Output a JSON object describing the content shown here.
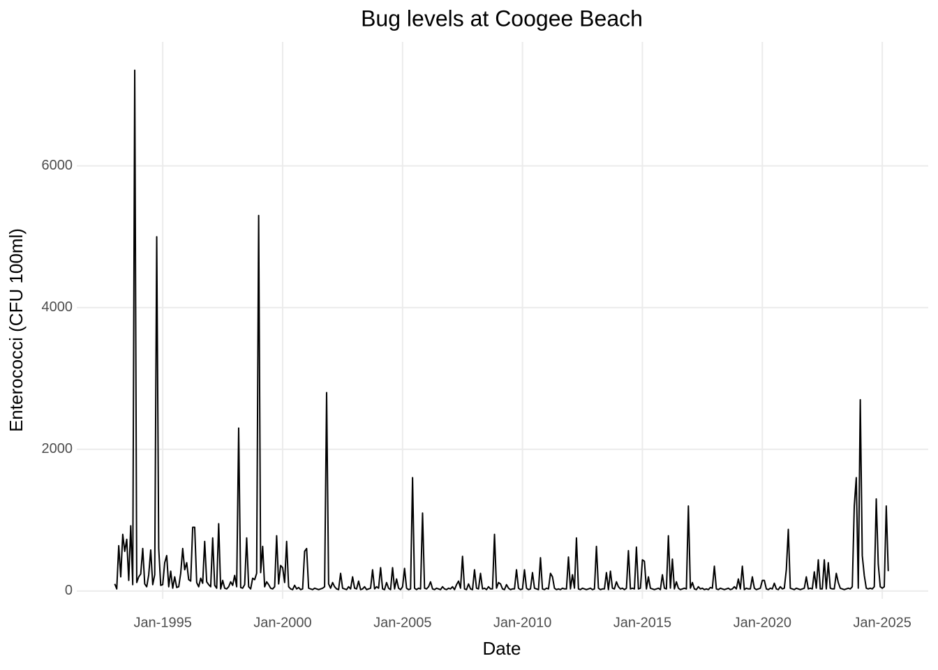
{
  "chart_data": {
    "type": "line",
    "title": "Bug levels at Coogee Beach",
    "x_label": "Date",
    "y_label": "Enterococci (CFU 100ml)",
    "xlim": [
      "1991-06",
      "2026-12"
    ],
    "xticks": [
      {
        "value": "1995-01",
        "label": "Jan-1995"
      },
      {
        "value": "2000-01",
        "label": "Jan-2000"
      },
      {
        "value": "2005-01",
        "label": "Jan-2005"
      },
      {
        "value": "2010-01",
        "label": "Jan-2010"
      },
      {
        "value": "2015-01",
        "label": "Jan-2015"
      },
      {
        "value": "2020-01",
        "label": "Jan-2020"
      },
      {
        "value": "2025-01",
        "label": "Jan-2025"
      }
    ],
    "ylim": [
      -110,
      7750
    ],
    "yticks": [
      0,
      2000,
      4000,
      6000
    ],
    "grid": true,
    "x": [
      "1993-01",
      "1993-02",
      "1993-03",
      "1993-04",
      "1993-05",
      "1993-06",
      "1993-07",
      "1993-08",
      "1993-09",
      "1993-10",
      "1993-11",
      "1993-12",
      "1994-01",
      "1994-02",
      "1994-03",
      "1994-04",
      "1994-05",
      "1994-06",
      "1994-07",
      "1994-08",
      "1994-09",
      "1994-10",
      "1994-11",
      "1994-12",
      "1995-01",
      "1995-02",
      "1995-03",
      "1995-04",
      "1995-05",
      "1995-06",
      "1995-07",
      "1995-08",
      "1995-09",
      "1995-10",
      "1995-11",
      "1995-12",
      "1996-01",
      "1996-02",
      "1996-03",
      "1996-04",
      "1996-05",
      "1996-06",
      "1996-07",
      "1996-08",
      "1996-09",
      "1996-10",
      "1996-11",
      "1996-12",
      "1997-01",
      "1997-02",
      "1997-03",
      "1997-04",
      "1997-05",
      "1997-06",
      "1997-07",
      "1997-08",
      "1997-09",
      "1997-10",
      "1997-11",
      "1997-12",
      "1998-01",
      "1998-02",
      "1998-03",
      "1998-04",
      "1998-05",
      "1998-06",
      "1998-07",
      "1998-08",
      "1998-09",
      "1998-10",
      "1998-11",
      "1998-12",
      "1999-01",
      "1999-02",
      "1999-03",
      "1999-04",
      "1999-05",
      "1999-06",
      "1999-07",
      "1999-08",
      "1999-09",
      "1999-10",
      "1999-11",
      "1999-12",
      "2000-01",
      "2000-02",
      "2000-03",
      "2000-04",
      "2000-05",
      "2000-06",
      "2000-07",
      "2000-08",
      "2000-09",
      "2000-10",
      "2000-11",
      "2000-12",
      "2001-01",
      "2001-02",
      "2001-03",
      "2001-04",
      "2001-05",
      "2001-06",
      "2001-07",
      "2001-08",
      "2001-09",
      "2001-10",
      "2001-11",
      "2001-12",
      "2002-01",
      "2002-02",
      "2002-03",
      "2002-04",
      "2002-05",
      "2002-06",
      "2002-07",
      "2002-08",
      "2002-09",
      "2002-10",
      "2002-11",
      "2002-12",
      "2003-01",
      "2003-02",
      "2003-03",
      "2003-04",
      "2003-05",
      "2003-06",
      "2003-07",
      "2003-08",
      "2003-09",
      "2003-10",
      "2003-11",
      "2003-12",
      "2004-01",
      "2004-02",
      "2004-03",
      "2004-04",
      "2004-05",
      "2004-06",
      "2004-07",
      "2004-08",
      "2004-09",
      "2004-10",
      "2004-11",
      "2004-12",
      "2005-01",
      "2005-02",
      "2005-03",
      "2005-04",
      "2005-05",
      "2005-06",
      "2005-07",
      "2005-08",
      "2005-09",
      "2005-10",
      "2005-11",
      "2005-12",
      "2006-01",
      "2006-02",
      "2006-03",
      "2006-04",
      "2006-05",
      "2006-06",
      "2006-07",
      "2006-08",
      "2006-09",
      "2006-10",
      "2006-11",
      "2006-12",
      "2007-01",
      "2007-02",
      "2007-03",
      "2007-04",
      "2007-05",
      "2007-06",
      "2007-07",
      "2007-08",
      "2007-09",
      "2007-10",
      "2007-11",
      "2007-12",
      "2008-01",
      "2008-02",
      "2008-03",
      "2008-04",
      "2008-05",
      "2008-06",
      "2008-07",
      "2008-08",
      "2008-09",
      "2008-10",
      "2008-11",
      "2008-12",
      "2009-01",
      "2009-02",
      "2009-03",
      "2009-04",
      "2009-05",
      "2009-06",
      "2009-07",
      "2009-08",
      "2009-09",
      "2009-10",
      "2009-11",
      "2009-12",
      "2010-01",
      "2010-02",
      "2010-03",
      "2010-04",
      "2010-05",
      "2010-06",
      "2010-07",
      "2010-08",
      "2010-09",
      "2010-10",
      "2010-11",
      "2010-12",
      "2011-01",
      "2011-02",
      "2011-03",
      "2011-04",
      "2011-05",
      "2011-06",
      "2011-07",
      "2011-08",
      "2011-09",
      "2011-10",
      "2011-11",
      "2011-12",
      "2012-01",
      "2012-02",
      "2012-03",
      "2012-04",
      "2012-05",
      "2012-06",
      "2012-07",
      "2012-08",
      "2012-09",
      "2012-10",
      "2012-11",
      "2012-12",
      "2013-01",
      "2013-02",
      "2013-03",
      "2013-04",
      "2013-05",
      "2013-06",
      "2013-07",
      "2013-08",
      "2013-09",
      "2013-10",
      "2013-11",
      "2013-12",
      "2014-01",
      "2014-02",
      "2014-03",
      "2014-04",
      "2014-05",
      "2014-06",
      "2014-07",
      "2014-08",
      "2014-09",
      "2014-10",
      "2014-11",
      "2014-12",
      "2015-01",
      "2015-02",
      "2015-03",
      "2015-04",
      "2015-05",
      "2015-06",
      "2015-07",
      "2015-08",
      "2015-09",
      "2015-10",
      "2015-11",
      "2015-12",
      "2016-01",
      "2016-02",
      "2016-03",
      "2016-04",
      "2016-05",
      "2016-06",
      "2016-07",
      "2016-08",
      "2016-09",
      "2016-10",
      "2016-11",
      "2016-12",
      "2017-01",
      "2017-02",
      "2017-03",
      "2017-04",
      "2017-05",
      "2017-06",
      "2017-07",
      "2017-08",
      "2017-09",
      "2017-10",
      "2017-11",
      "2017-12",
      "2018-01",
      "2018-02",
      "2018-03",
      "2018-04",
      "2018-05",
      "2018-06",
      "2018-07",
      "2018-08",
      "2018-09",
      "2018-10",
      "2018-11",
      "2018-12",
      "2019-01",
      "2019-02",
      "2019-03",
      "2019-04",
      "2019-05",
      "2019-06",
      "2019-07",
      "2019-08",
      "2019-09",
      "2019-10",
      "2019-11",
      "2019-12",
      "2020-01",
      "2020-02",
      "2020-03",
      "2020-04",
      "2020-05",
      "2020-06",
      "2020-07",
      "2020-08",
      "2020-09",
      "2020-10",
      "2020-11",
      "2020-12",
      "2021-01",
      "2021-02",
      "2021-03",
      "2021-04",
      "2021-05",
      "2021-06",
      "2021-07",
      "2021-08",
      "2021-09",
      "2021-10",
      "2021-11",
      "2021-12",
      "2022-01",
      "2022-02",
      "2022-03",
      "2022-04",
      "2022-05",
      "2022-06",
      "2022-07",
      "2022-08",
      "2022-09",
      "2022-10",
      "2022-11",
      "2022-12",
      "2023-01",
      "2023-02",
      "2023-03",
      "2023-04",
      "2023-05",
      "2023-06",
      "2023-07",
      "2023-08",
      "2023-09",
      "2023-10",
      "2023-11",
      "2023-12",
      "2024-01",
      "2024-02",
      "2024-03",
      "2024-04",
      "2024-05",
      "2024-06",
      "2024-07",
      "2024-08",
      "2024-09",
      "2024-10",
      "2024-11",
      "2024-12",
      "2025-01",
      "2025-02",
      "2025-03",
      "2025-04"
    ],
    "series": [
      {
        "color": "#000000",
        "values": [
          100,
          30,
          640,
          200,
          800,
          560,
          730,
          150,
          920,
          90,
          7350,
          120,
          200,
          240,
          600,
          100,
          60,
          230,
          580,
          90,
          230,
          5000,
          600,
          80,
          90,
          400,
          500,
          60,
          280,
          40,
          200,
          50,
          60,
          250,
          600,
          300,
          400,
          160,
          140,
          900,
          900,
          120,
          60,
          180,
          110,
          700,
          130,
          90,
          60,
          750,
          80,
          40,
          950,
          30,
          150,
          40,
          30,
          60,
          130,
          80,
          220,
          60,
          2300,
          50,
          40,
          90,
          750,
          60,
          30,
          180,
          160,
          250,
          5300,
          260,
          630,
          60,
          130,
          90,
          40,
          30,
          60,
          780,
          100,
          360,
          330,
          120,
          700,
          60,
          30,
          20,
          80,
          30,
          50,
          20,
          30,
          560,
          600,
          40,
          30,
          20,
          40,
          30,
          20,
          30,
          40,
          60,
          2800,
          100,
          40,
          120,
          60,
          30,
          20,
          250,
          40,
          30,
          20,
          60,
          30,
          200,
          40,
          30,
          140,
          20,
          30,
          60,
          20,
          30,
          40,
          300,
          30,
          60,
          40,
          330,
          30,
          20,
          120,
          40,
          20,
          330,
          30,
          170,
          40,
          20,
          60,
          320,
          40,
          20,
          30,
          1600,
          40,
          20,
          40,
          30,
          1100,
          40,
          30,
          60,
          130,
          30,
          20,
          40,
          30,
          20,
          60,
          30,
          20,
          40,
          30,
          60,
          20,
          90,
          140,
          40,
          490,
          30,
          20,
          100,
          30,
          20,
          300,
          40,
          30,
          250,
          30,
          40,
          20,
          60,
          30,
          30,
          800,
          40,
          120,
          100,
          30,
          20,
          90,
          40,
          20,
          30,
          30,
          300,
          40,
          20,
          30,
          300,
          40,
          20,
          30,
          260,
          40,
          30,
          20,
          470,
          30,
          20,
          40,
          30,
          250,
          200,
          40,
          20,
          30,
          20,
          40,
          30,
          30,
          480,
          30,
          230,
          40,
          750,
          30,
          20,
          40,
          30,
          20,
          30,
          40,
          20,
          30,
          630,
          40,
          20,
          30,
          30,
          260,
          20,
          280,
          40,
          30,
          130,
          60,
          30,
          40,
          20,
          40,
          570,
          30,
          40,
          30,
          620,
          30,
          40,
          440,
          420,
          30,
          200,
          40,
          30,
          20,
          30,
          40,
          20,
          230,
          40,
          30,
          780,
          40,
          450,
          30,
          130,
          40,
          20,
          30,
          40,
          30,
          1200,
          40,
          120,
          30,
          20,
          60,
          30,
          40,
          20,
          30,
          20,
          50,
          40,
          350,
          30,
          20,
          40,
          30,
          20,
          30,
          40,
          20,
          30,
          60,
          30,
          170,
          30,
          350,
          20,
          40,
          30,
          30,
          200,
          40,
          20,
          30,
          40,
          150,
          150,
          30,
          20,
          40,
          30,
          110,
          30,
          20,
          60,
          30,
          40,
          300,
          870,
          40,
          30,
          20,
          40,
          30,
          20,
          30,
          40,
          200,
          30,
          40,
          30,
          270,
          40,
          440,
          30,
          30,
          440,
          30,
          400,
          40,
          30,
          30,
          250,
          120,
          40,
          30,
          20,
          30,
          40,
          30,
          60,
          1200,
          1600,
          40,
          2700,
          500,
          220,
          40,
          30,
          40,
          30,
          60,
          1300,
          380,
          60,
          40,
          60,
          1200,
          280
        ]
      }
    ]
  }
}
